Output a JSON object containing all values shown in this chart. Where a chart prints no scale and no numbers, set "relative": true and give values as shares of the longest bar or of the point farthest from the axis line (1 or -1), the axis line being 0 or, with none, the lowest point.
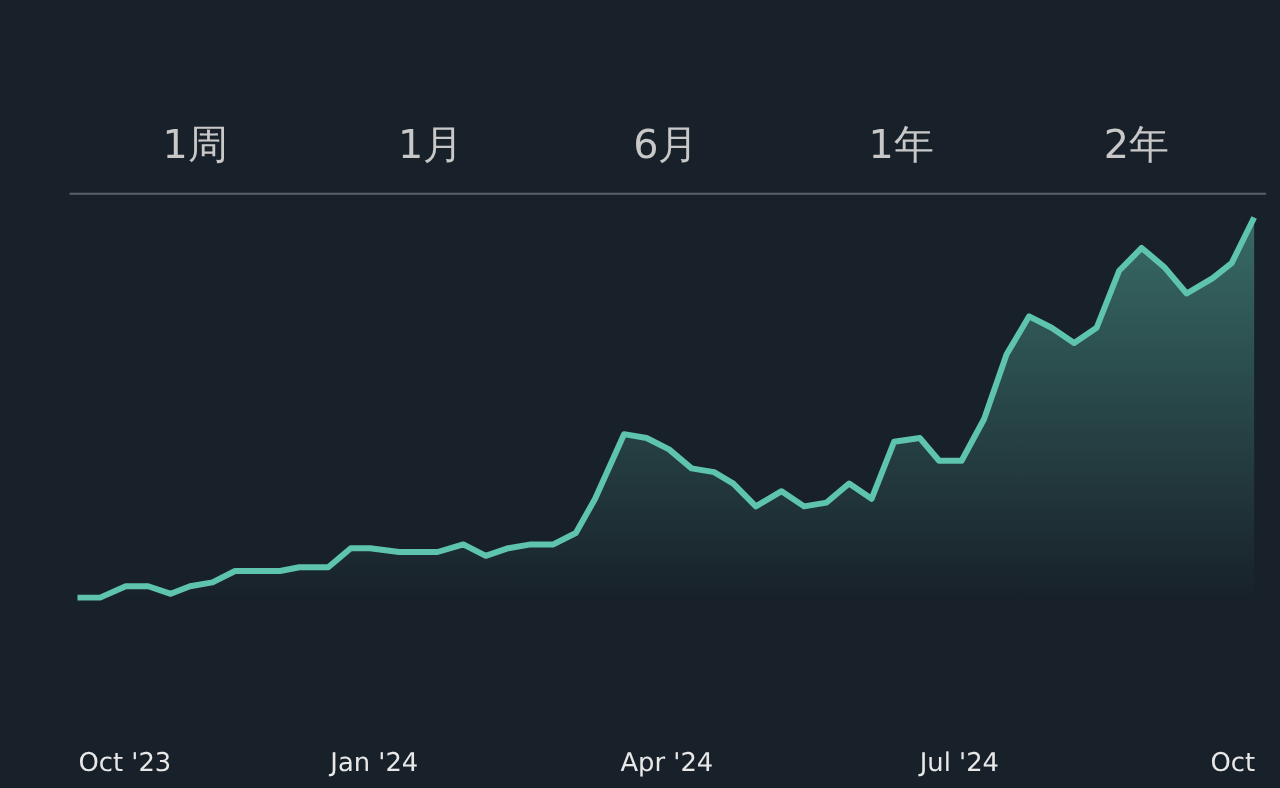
{
  "chart_data": {
    "type": "area",
    "relative": true,
    "grid": false,
    "marker": "none",
    "line_style": "solid",
    "annotations": [
      "1周",
      "1月",
      "6月",
      "1年",
      "2年"
    ],
    "xlim": [
      "2023-10-01",
      "2024-10-01"
    ],
    "xticks": [
      {
        "value": "2023-10-01",
        "label": "Oct '23"
      },
      {
        "value": "2024-01-01",
        "label": "Jan '24"
      },
      {
        "value": "2024-04-01",
        "label": "Apr '24"
      },
      {
        "value": "2024-07-01",
        "label": "Jul '24"
      },
      {
        "value": "2024-10-01",
        "label": "Oct"
      }
    ],
    "x": [
      "2023-10-01",
      "2023-10-08",
      "2023-10-16",
      "2023-10-23",
      "2023-10-30",
      "2023-11-05",
      "2023-11-12",
      "2023-11-19",
      "2023-11-27",
      "2023-12-03",
      "2023-12-09",
      "2023-12-18",
      "2023-12-25",
      "2023-12-31",
      "2024-01-09",
      "2024-01-21",
      "2024-01-29",
      "2024-02-05",
      "2024-02-12",
      "2024-02-19",
      "2024-02-26",
      "2024-03-04",
      "2024-03-10",
      "2024-03-19",
      "2024-03-26",
      "2024-04-02",
      "2024-04-09",
      "2024-04-16",
      "2024-04-22",
      "2024-04-29",
      "2024-05-07",
      "2024-05-14",
      "2024-05-21",
      "2024-05-28",
      "2024-06-04",
      "2024-06-11",
      "2024-06-19",
      "2024-06-25",
      "2024-07-02",
      "2024-07-09",
      "2024-07-16",
      "2024-07-23",
      "2024-07-30",
      "2024-08-06",
      "2024-08-13",
      "2024-08-20",
      "2024-08-27",
      "2024-09-03",
      "2024-09-10",
      "2024-09-18",
      "2024-09-24",
      "2024-10-01"
    ],
    "series": [
      {
        "color": "#5ec4ac",
        "values": [
          0,
          0,
          0.03,
          0.03,
          0.01,
          0.03,
          0.04,
          0.07,
          0.07,
          0.07,
          0.08,
          0.08,
          0.13,
          0.13,
          0.12,
          0.12,
          0.14,
          0.11,
          0.13,
          0.14,
          0.14,
          0.17,
          0.26,
          0.43,
          0.42,
          0.39,
          0.34,
          0.33,
          0.3,
          0.24,
          0.28,
          0.24,
          0.25,
          0.3,
          0.26,
          0.41,
          0.42,
          0.36,
          0.36,
          0.47,
          0.64,
          0.74,
          0.71,
          0.67,
          0.71,
          0.86,
          0.92,
          0.87,
          0.8,
          0.84,
          0.88,
          1.0
        ]
      }
    ]
  }
}
